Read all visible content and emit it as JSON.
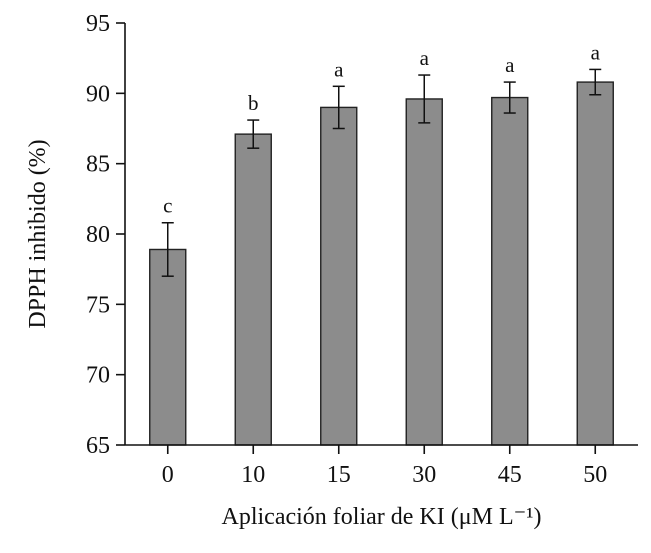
{
  "chart_data": {
    "type": "bar",
    "xlabel": "Aplicación foliar de KI (μM L⁻¹)",
    "ylabel": "DPPH inhibido (%)",
    "categories": [
      "0",
      "10",
      "15",
      "30",
      "45",
      "50"
    ],
    "values": [
      78.9,
      87.1,
      89.0,
      89.6,
      89.7,
      90.8
    ],
    "errors": [
      1.9,
      1.0,
      1.5,
      1.7,
      1.1,
      0.9
    ],
    "significance_letters": [
      "c",
      "b",
      "a",
      "a",
      "a",
      "a"
    ],
    "ylim": [
      65,
      95
    ],
    "yticks": [
      65,
      70,
      75,
      80,
      85,
      90,
      95
    ],
    "grid": false,
    "colors": {
      "bar_fill": "#8c8c8c",
      "bar_stroke": "#222222",
      "axis": "#111111"
    }
  }
}
